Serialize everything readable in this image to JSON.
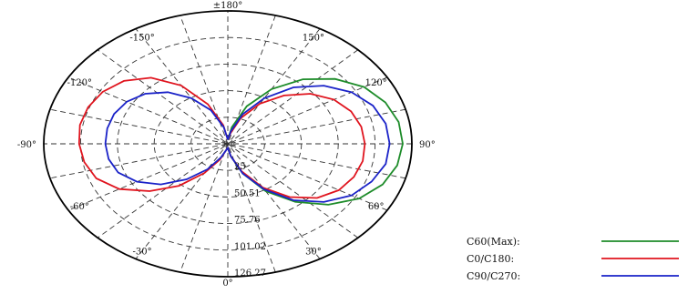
{
  "chart_data": {
    "type": "polar-line",
    "title": "",
    "angle_labels": [
      {
        "angle": 180,
        "text": "±180°"
      },
      {
        "angle": 150,
        "text": "150°"
      },
      {
        "angle": 120,
        "text": "120°"
      },
      {
        "angle": 90,
        "text": "90°"
      },
      {
        "angle": 60,
        "text": "60°"
      },
      {
        "angle": 30,
        "text": "30°"
      },
      {
        "angle": 0,
        "text": "0°"
      },
      {
        "angle": -30,
        "text": "-30°"
      },
      {
        "angle": -60,
        "text": "-60°"
      },
      {
        "angle": -90,
        "text": "-90°"
      },
      {
        "angle": -120,
        "text": "-120°"
      },
      {
        "angle": -150,
        "text": "-150°"
      }
    ],
    "radial_ticks": [
      {
        "value": 25.25,
        "text": "25"
      },
      {
        "value": 50.51,
        "text": "50.51"
      },
      {
        "value": 75.76,
        "text": "75.76"
      },
      {
        "value": 101.02,
        "text": "101.02"
      },
      {
        "value": 126.27,
        "text": "126.27"
      }
    ],
    "r_max": 126.27,
    "angle_unit": "degrees",
    "angle_convention": "0° at bottom, positive angles clockwise toward the right",
    "series": [
      {
        "name": "C60(Max):",
        "color": "#1e8c2a",
        "points": [
          [
            0,
            4
          ],
          [
            10,
            12
          ],
          [
            20,
            30
          ],
          [
            30,
            52
          ],
          [
            40,
            72
          ],
          [
            50,
            90
          ],
          [
            60,
            104
          ],
          [
            70,
            113
          ],
          [
            80,
            118
          ],
          [
            90,
            120
          ],
          [
            100,
            119
          ],
          [
            110,
            115
          ],
          [
            120,
            108
          ],
          [
            130,
            96
          ],
          [
            140,
            80
          ],
          [
            150,
            60
          ],
          [
            160,
            38
          ],
          [
            170,
            16
          ],
          [
            180,
            4
          ]
        ]
      },
      {
        "name": "C0/C180:",
        "color": "#e0141e",
        "points": [
          [
            -180,
            4
          ],
          [
            -170,
            18
          ],
          [
            -160,
            40
          ],
          [
            -150,
            64
          ],
          [
            -140,
            82
          ],
          [
            -130,
            93
          ],
          [
            -120,
            99
          ],
          [
            -110,
            102
          ],
          [
            -100,
            103
          ],
          [
            -90,
            102
          ],
          [
            -80,
            100
          ],
          [
            -70,
            96
          ],
          [
            -60,
            86
          ],
          [
            -50,
            70
          ],
          [
            -40,
            52
          ],
          [
            -30,
            32
          ],
          [
            -20,
            16
          ],
          [
            -10,
            6
          ],
          [
            0,
            4
          ],
          [
            10,
            12
          ],
          [
            20,
            28
          ],
          [
            30,
            48
          ],
          [
            40,
            66
          ],
          [
            50,
            80
          ],
          [
            60,
            88
          ],
          [
            70,
            92
          ],
          [
            80,
            94
          ],
          [
            90,
            94
          ],
          [
            100,
            93
          ],
          [
            110,
            90
          ],
          [
            120,
            84
          ],
          [
            130,
            74
          ],
          [
            140,
            60
          ],
          [
            150,
            44
          ],
          [
            160,
            26
          ],
          [
            170,
            10
          ],
          [
            180,
            4
          ]
        ]
      },
      {
        "name": "C90/C270:",
        "color": "#1a22c8",
        "points": [
          [
            -180,
            4
          ],
          [
            -170,
            16
          ],
          [
            -160,
            34
          ],
          [
            -150,
            50
          ],
          [
            -140,
            64
          ],
          [
            -130,
            74
          ],
          [
            -120,
            80
          ],
          [
            -110,
            83
          ],
          [
            -100,
            84
          ],
          [
            -90,
            84
          ],
          [
            -80,
            83
          ],
          [
            -70,
            80
          ],
          [
            -60,
            72
          ],
          [
            -50,
            60
          ],
          [
            -40,
            44
          ],
          [
            -30,
            28
          ],
          [
            -20,
            14
          ],
          [
            -10,
            6
          ],
          [
            0,
            4
          ],
          [
            10,
            12
          ],
          [
            20,
            30
          ],
          [
            30,
            50
          ],
          [
            40,
            70
          ],
          [
            50,
            86
          ],
          [
            60,
            98
          ],
          [
            70,
            105
          ],
          [
            80,
            110
          ],
          [
            90,
            111
          ],
          [
            100,
            110
          ],
          [
            110,
            106
          ],
          [
            120,
            98
          ],
          [
            130,
            86
          ],
          [
            140,
            70
          ],
          [
            150,
            50
          ],
          [
            160,
            30
          ],
          [
            170,
            12
          ],
          [
            180,
            4
          ]
        ]
      }
    ],
    "legend_position": "bottom-right",
    "grid": true
  }
}
